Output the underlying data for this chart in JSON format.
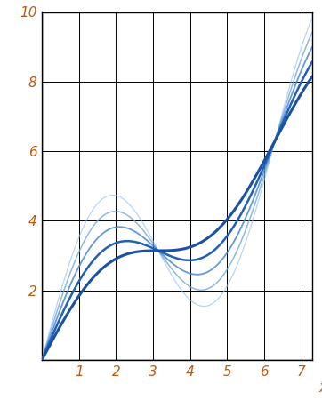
{
  "title": "",
  "xlabel": "x",
  "xlim": [
    0,
    7.3
  ],
  "ylim": [
    0,
    10
  ],
  "xticks": [
    1,
    2,
    3,
    4,
    5,
    6,
    7
  ],
  "yticks": [
    2,
    4,
    6,
    8,
    10
  ],
  "curves": [
    {
      "a": 1.0,
      "color": "#1a52a0",
      "lw": 2.2,
      "alpha": 1.0
    },
    {
      "a": 1.5,
      "color": "#2060b8",
      "lw": 1.8,
      "alpha": 1.0
    },
    {
      "a": 2.0,
      "color": "#4a88d0",
      "lw": 1.3,
      "alpha": 0.85
    },
    {
      "a": 2.5,
      "color": "#6aa0e0",
      "lw": 1.1,
      "alpha": 0.75
    },
    {
      "a": 3.0,
      "color": "#90c0f0",
      "lw": 0.9,
      "alpha": 0.65
    }
  ],
  "grid_color": "#000000",
  "tick_color": "#c05a10",
  "background": "#ffffff"
}
